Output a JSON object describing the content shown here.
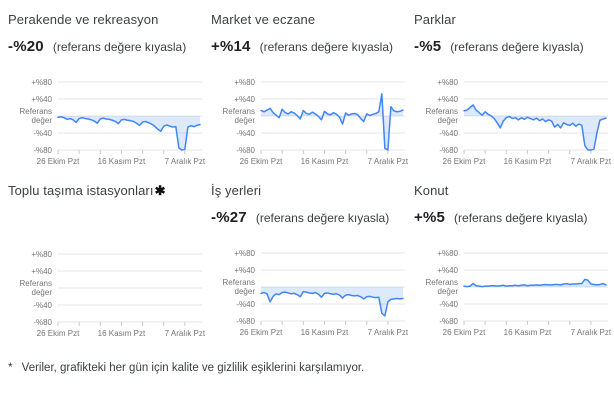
{
  "footnote": {
    "marker": "*",
    "text": "Veriler, grafikteki her gün için kalite ve gizlilik eşiklerini karşılamıyor."
  },
  "axis": {
    "y_labels": [
      "+%80",
      "+%40",
      "Referans değer",
      "-%40",
      "-%80"
    ],
    "y_values": [
      80,
      40,
      0,
      -40,
      -80
    ],
    "x_labels": [
      "26 Ekim Pzt",
      "16 Kasım Pzt",
      "7 Aralık Pzt"
    ],
    "x_label_days": [
      0,
      21,
      42
    ],
    "tick_interval_days": 7,
    "total_days": 48,
    "ylim": [
      -80,
      80
    ]
  },
  "colors": {
    "line": "#4285f4",
    "fill": "#4285f4",
    "fill_opacity": "0.18",
    "grid": "#e3e5e8",
    "tick": "#c7cacd",
    "axis_text": "#757575",
    "title_text": "#3c4043",
    "value_text": "#202124"
  },
  "chart_data": [
    {
      "type": "line",
      "title": "Perakende ve rekreasyon",
      "value_label": "-%20",
      "compare_label": "(referans değere kıyasla)",
      "baseline_label": "Referans değer",
      "ylim": [
        -80,
        80
      ],
      "x_ticks": [
        "26 Ekim Pzt",
        "16 Kasım Pzt",
        "7 Aralık Pzt"
      ],
      "values": [
        -3,
        -2,
        -4,
        -8,
        -6,
        -9,
        -15,
        -6,
        -4,
        -6,
        -7,
        -9,
        -12,
        -17,
        -7,
        -5,
        -7,
        -8,
        -10,
        -13,
        -18,
        -9,
        -8,
        -10,
        -11,
        -13,
        -17,
        -22,
        -14,
        -13,
        -16,
        -19,
        -24,
        -31,
        -36,
        -24,
        -21,
        -24,
        -26,
        -25,
        -75,
        -80,
        -78,
        -26,
        -23,
        -25,
        -22,
        -20
      ]
    },
    {
      "type": "line",
      "title": "Market ve eczane",
      "value_label": "+%14",
      "compare_label": "(referans değere kıyasla)",
      "baseline_label": "Referans değer",
      "ylim": [
        -80,
        80
      ],
      "x_ticks": [
        "26 Ekim Pzt",
        "16 Kasım Pzt",
        "7 Aralık Pzt"
      ],
      "values": [
        13,
        10,
        14,
        18,
        8,
        2,
        -4,
        16,
        8,
        5,
        10,
        7,
        1,
        -7,
        13,
        6,
        4,
        9,
        5,
        -1,
        -9,
        11,
        5,
        3,
        8,
        4,
        -3,
        -19,
        7,
        2,
        5,
        6,
        3,
        -6,
        -13,
        5,
        1,
        4,
        6,
        10,
        52,
        -76,
        -80,
        22,
        12,
        10,
        11,
        14
      ]
    },
    {
      "type": "line",
      "title": "Parklar",
      "value_label": "-%5",
      "compare_label": "(referans değere kıyasla)",
      "baseline_label": "Referans değer",
      "ylim": [
        -80,
        80
      ],
      "x_ticks": [
        "26 Ekim Pzt",
        "16 Kasım Pzt",
        "7 Aralık Pzt"
      ],
      "values": [
        12,
        14,
        20,
        26,
        14,
        8,
        2,
        10,
        4,
        0,
        -6,
        -16,
        -28,
        -12,
        -4,
        -1,
        -6,
        -4,
        -9,
        -4,
        -8,
        -3,
        -6,
        -9,
        -5,
        -11,
        -7,
        -13,
        -9,
        -12,
        -26,
        -20,
        -28,
        -16,
        -20,
        -22,
        -17,
        -24,
        -19,
        -22,
        -70,
        -80,
        -80,
        -78,
        -40,
        -10,
        -7,
        -5
      ]
    },
    {
      "type": "line",
      "title": "Toplu taşıma istasyonları",
      "star": "✱",
      "value_label": null,
      "compare_label": null,
      "baseline_label": "Referans değer",
      "ylim": [
        -80,
        80
      ],
      "x_ticks": [
        "26 Ekim Pzt",
        "16 Kasım Pzt",
        "7 Aralık Pzt"
      ],
      "values": null
    },
    {
      "type": "line",
      "title": "İş yerleri",
      "value_label": "-%27",
      "compare_label": "(referans değere kıyasla)",
      "baseline_label": "Referans değer",
      "ylim": [
        -80,
        80
      ],
      "x_ticks": [
        "26 Ekim Pzt",
        "16 Kasım Pzt",
        "7 Aralık Pzt"
      ],
      "values": [
        -15,
        -13,
        -16,
        -35,
        -22,
        -16,
        -18,
        -13,
        -12,
        -14,
        -16,
        -15,
        -18,
        -23,
        -11,
        -12,
        -14,
        -15,
        -13,
        -17,
        -24,
        -15,
        -14,
        -16,
        -17,
        -16,
        -19,
        -26,
        -19,
        -18,
        -20,
        -21,
        -20,
        -23,
        -28,
        -23,
        -22,
        -24,
        -25,
        -24,
        -62,
        -68,
        -35,
        -29,
        -28,
        -27,
        -28,
        -27
      ]
    },
    {
      "type": "line",
      "title": "Konut",
      "value_label": "+%5",
      "compare_label": "(referans değere kıyasla)",
      "baseline_label": "Referans değer",
      "ylim": [
        -80,
        80
      ],
      "x_ticks": [
        "26 Ekim Pzt",
        "16 Kasım Pzt",
        "7 Aralık Pzt"
      ],
      "values": [
        2,
        1,
        2,
        8,
        3,
        2,
        1,
        2,
        2,
        3,
        3,
        2,
        3,
        4,
        2,
        3,
        3,
        4,
        3,
        4,
        5,
        3,
        4,
        4,
        5,
        4,
        5,
        6,
        5,
        5,
        6,
        6,
        5,
        7,
        8,
        6,
        7,
        7,
        8,
        8,
        18,
        16,
        7,
        6,
        5,
        6,
        8,
        5
      ]
    }
  ]
}
